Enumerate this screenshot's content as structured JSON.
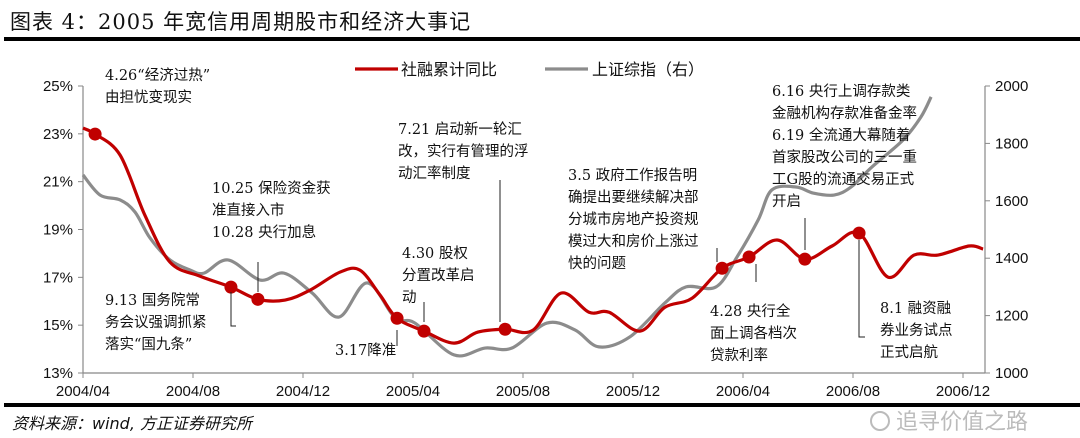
{
  "title": "图表 4：2005 年宽信用周期股市和经济大事记",
  "source": "资料来源：wind, 方正证券研究所",
  "watermark": "追寻价值之路",
  "chart_data": {
    "type": "line",
    "title": "图表 4：2005 年宽信用周期股市和经济大事记",
    "x_unit": "months since 2004/04",
    "x_ticks": [
      "2004/04",
      "2004/08",
      "2004/12",
      "2005/04",
      "2005/08",
      "2005/12",
      "2006/04",
      "2006/08",
      "2006/12"
    ],
    "x_tick_months": [
      0,
      4,
      8,
      12,
      16,
      20,
      24,
      28,
      32
    ],
    "xlim": [
      0,
      32.8
    ],
    "y_left": {
      "ylim": [
        13,
        25
      ],
      "ticks": [
        "13%",
        "15%",
        "17%",
        "19%",
        "21%",
        "23%",
        "25%"
      ],
      "tick_values": [
        13,
        15,
        17,
        19,
        21,
        23,
        25
      ]
    },
    "y_right": {
      "ylim": [
        1000,
        2000
      ],
      "ticks": [
        "1000",
        "1200",
        "1400",
        "1600",
        "1800",
        "2000"
      ],
      "tick_values": [
        1000,
        1200,
        1400,
        1600,
        1800,
        2000
      ]
    },
    "legend": {
      "position": "top-center"
    },
    "colors": {
      "red": "#c00000",
      "gray": "#8c8c8c"
    },
    "series": [
      {
        "name": "社融累计同比",
        "axis": "left",
        "color": "#c00000",
        "points": [
          [
            0,
            23.24
          ],
          [
            0.44,
            22.99
          ],
          [
            1.35,
            22.11
          ],
          [
            2.25,
            19.6
          ],
          [
            3.16,
            17.64
          ],
          [
            4.25,
            17.05
          ],
          [
            5.38,
            16.59
          ],
          [
            6.36,
            16.08
          ],
          [
            7.35,
            16.05
          ],
          [
            8.25,
            16.46
          ],
          [
            9.35,
            17.22
          ],
          [
            10.07,
            17.3
          ],
          [
            10.8,
            16.26
          ],
          [
            11.42,
            15.29
          ],
          [
            12.4,
            14.75
          ],
          [
            13.49,
            14.25
          ],
          [
            14.36,
            14.71
          ],
          [
            15.35,
            14.83
          ],
          [
            16.36,
            14.79
          ],
          [
            17.38,
            16.34
          ],
          [
            18.4,
            15.54
          ],
          [
            19.13,
            15.54
          ],
          [
            20.25,
            14.75
          ],
          [
            21.16,
            15.75
          ],
          [
            22.15,
            16.13
          ],
          [
            23.24,
            17.38
          ],
          [
            24.22,
            17.85
          ],
          [
            25.24,
            18.56
          ],
          [
            26.25,
            17.76
          ],
          [
            27.24,
            18.31
          ],
          [
            28.22,
            18.85
          ],
          [
            29.27,
            17.01
          ],
          [
            30.22,
            17.93
          ],
          [
            31.09,
            17.93
          ],
          [
            32.22,
            18.31
          ],
          [
            32.73,
            18.18
          ]
        ],
        "markers": [
          1,
          6,
          7,
          13,
          14,
          17,
          25,
          26,
          28,
          30
        ]
      },
      {
        "name": "上证综指（右）",
        "axis": "right",
        "color": "#8c8c8c",
        "points": [
          [
            0,
            1690
          ],
          [
            0.62,
            1620
          ],
          [
            1.35,
            1603
          ],
          [
            1.89,
            1561
          ],
          [
            2.44,
            1470
          ],
          [
            3.16,
            1394
          ],
          [
            3.89,
            1359
          ],
          [
            4.4,
            1348
          ],
          [
            5.27,
            1394
          ],
          [
            6.44,
            1324
          ],
          [
            7.31,
            1348
          ],
          [
            8.33,
            1279
          ],
          [
            9.31,
            1195
          ],
          [
            10.33,
            1314
          ],
          [
            11.35,
            1192
          ],
          [
            12.07,
            1174
          ],
          [
            13.49,
            1063
          ],
          [
            14.62,
            1087
          ],
          [
            15.6,
            1087
          ],
          [
            16.87,
            1174
          ],
          [
            17.89,
            1150
          ],
          [
            18.76,
            1091
          ],
          [
            19.89,
            1126
          ],
          [
            21.16,
            1244
          ],
          [
            21.93,
            1300
          ],
          [
            23.02,
            1300
          ],
          [
            23.78,
            1404
          ],
          [
            24.55,
            1533
          ],
          [
            25.05,
            1638
          ],
          [
            25.93,
            1648
          ],
          [
            26.55,
            1627
          ],
          [
            27.31,
            1620
          ],
          [
            27.93,
            1648
          ],
          [
            28.69,
            1718
          ],
          [
            29.82,
            1812
          ],
          [
            30.47,
            1892
          ],
          [
            30.84,
            1962
          ]
        ]
      }
    ],
    "annotations": [
      {
        "lines": [
          "4.26“经济过热”",
          "由担忧变现实"
        ]
      },
      {
        "lines": [
          "10.25 保险资金获",
          "准直接入市",
          "10.28 央行加息"
        ]
      },
      {
        "lines": [
          "9.13 国务院常",
          "务会议强调抓紧",
          "落实“国九条”"
        ]
      },
      {
        "lines": [
          "7.21 启动新一轮汇",
          "改，实行有管理的浮",
          "动汇率制度"
        ]
      },
      {
        "lines": [
          "4.30 股权",
          "分置改革启",
          "动"
        ]
      },
      {
        "lines": [
          "3.17降准"
        ]
      },
      {
        "lines": [
          "3.5 政府工作报告明",
          "确提出要继续解决部",
          "分城市房地产投资规",
          "模过大和房价上涨过",
          "快的问题"
        ]
      },
      {
        "lines": [
          "4.28 央行全",
          "面上调各档次",
          "贷款利率"
        ]
      },
      {
        "lines": [
          "6.16 央行上调存款类",
          "金融机构存款准备金率",
          "6.19 全流通大幕随着",
          "首家股改公司的三一重",
          "工G股的流通交易正式",
          "开启"
        ]
      },
      {
        "lines": [
          "8.1 融资融",
          "券业务试点",
          "正式启航"
        ]
      }
    ]
  }
}
